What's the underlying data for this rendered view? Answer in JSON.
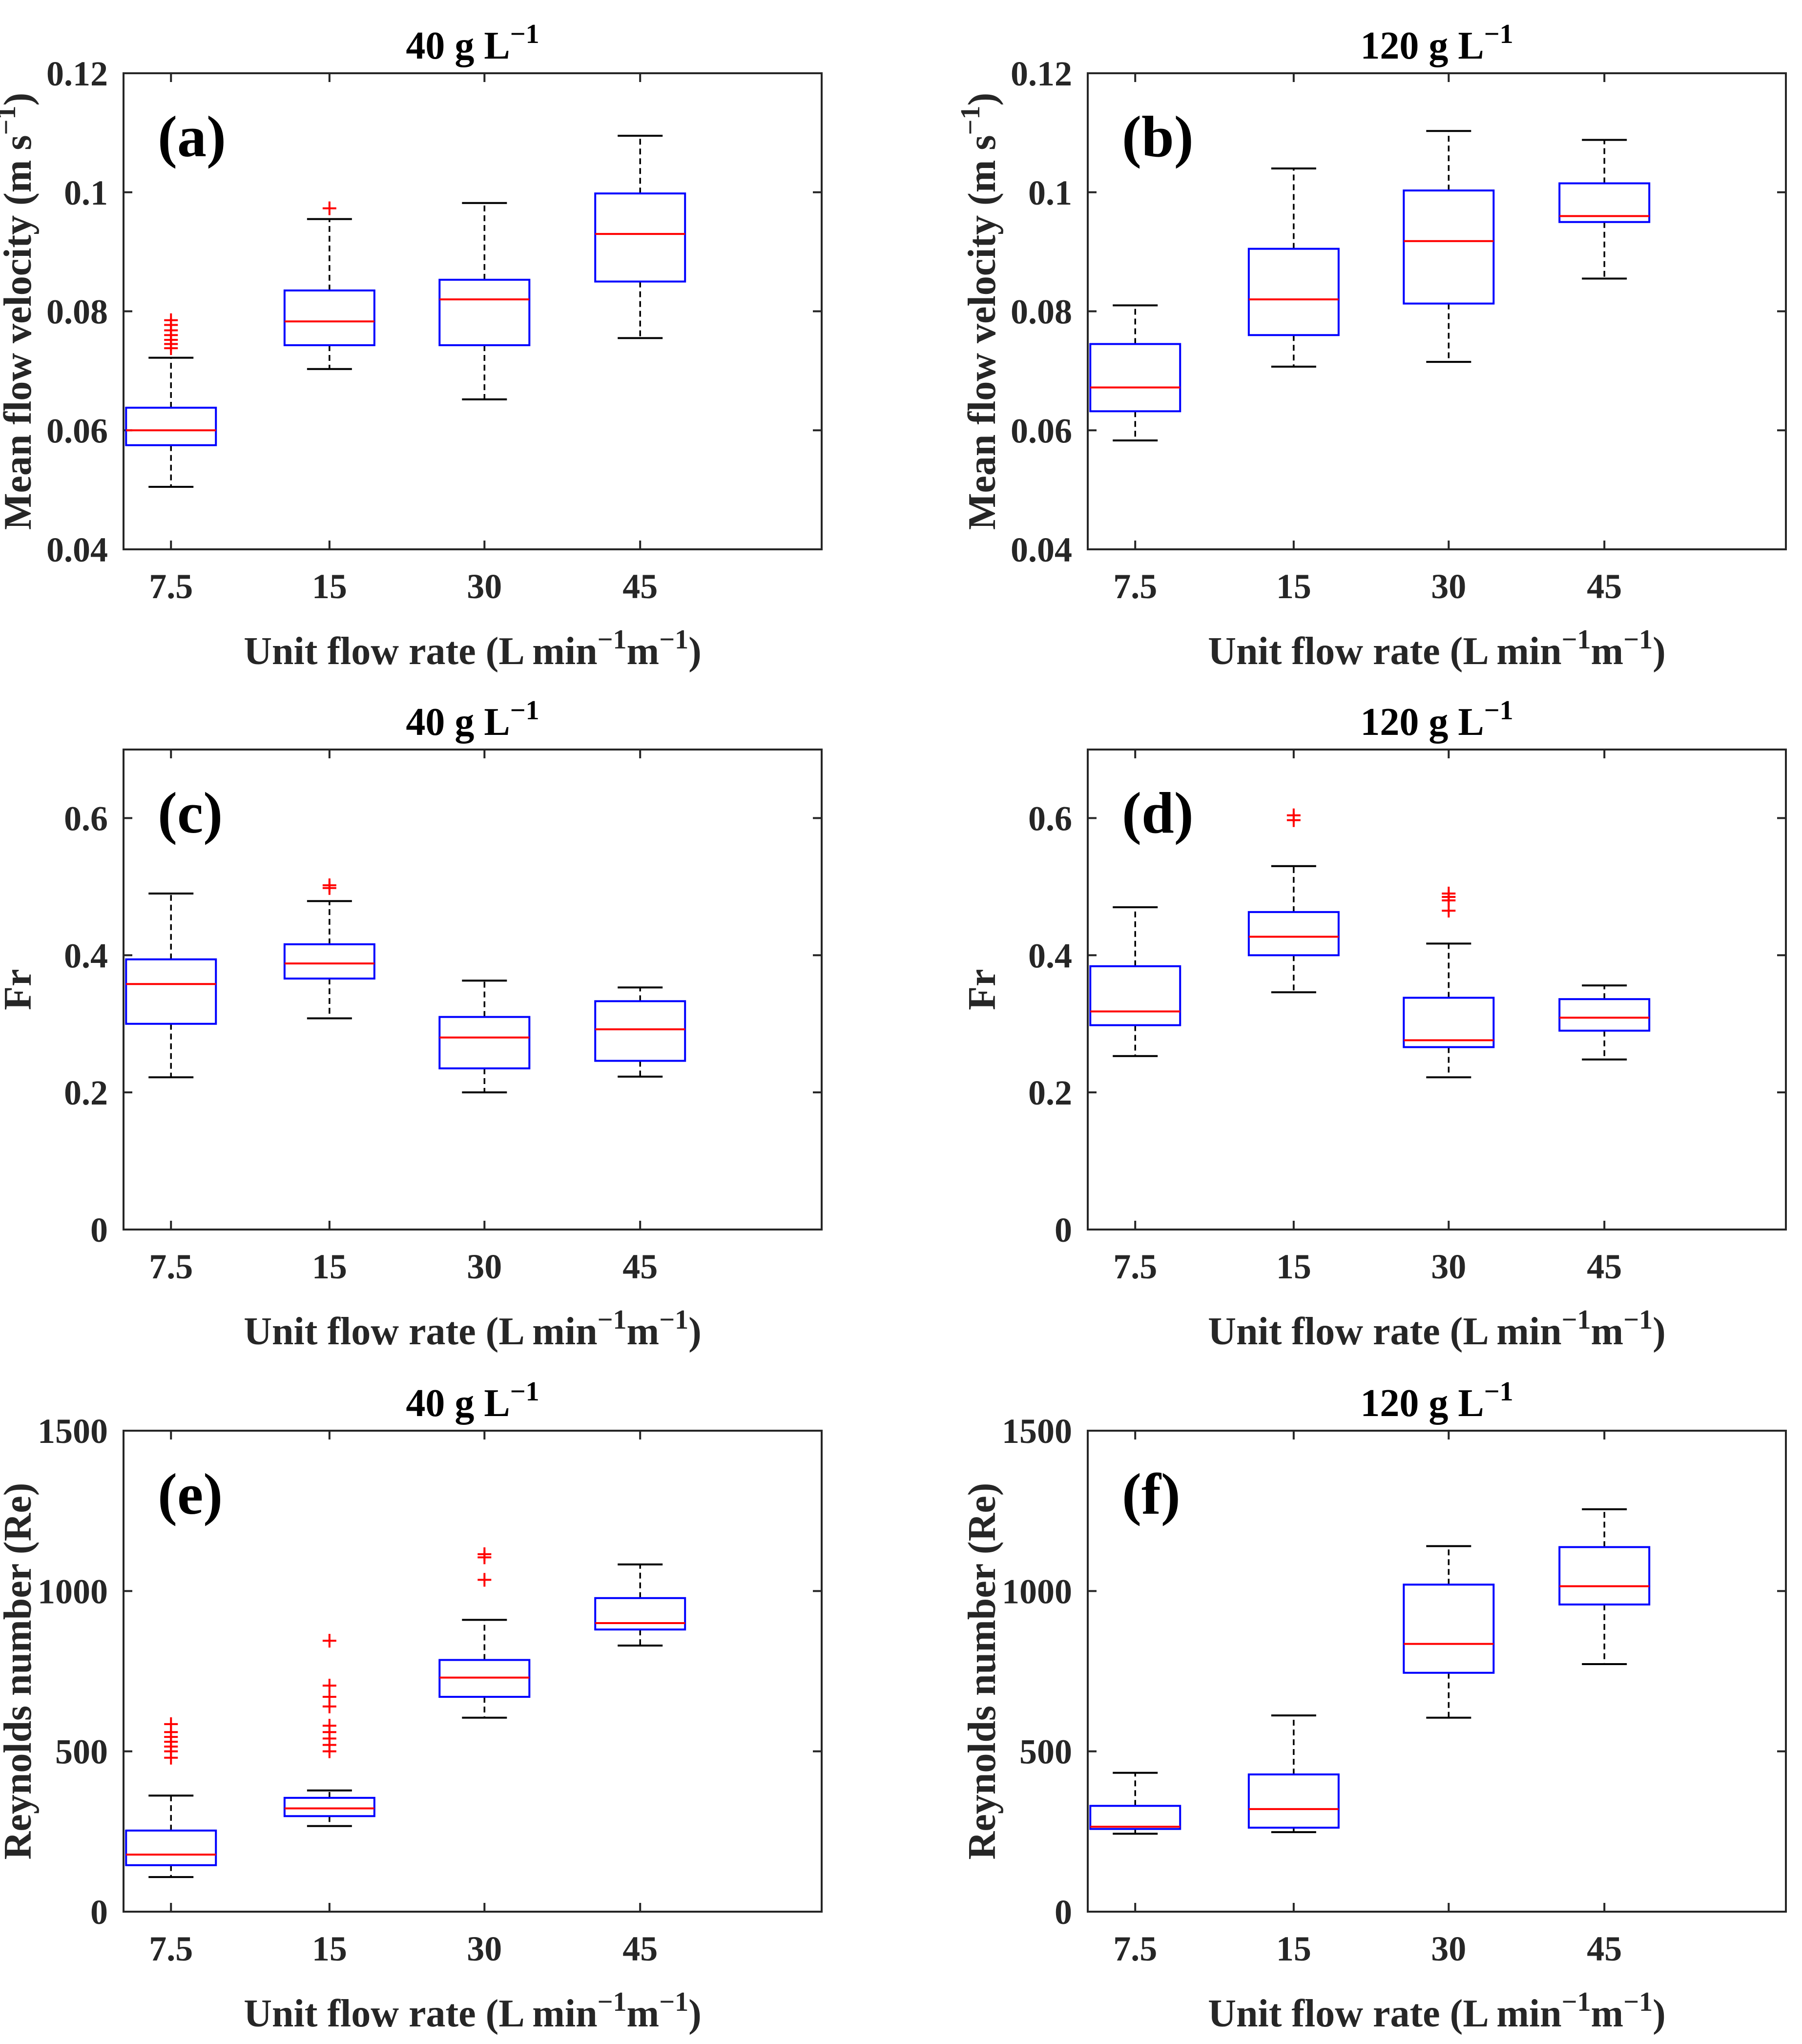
{
  "figure": {
    "categories": [
      "7.5",
      "15",
      "30",
      "45"
    ],
    "xlabel_main": "Unit flow rate (L min",
    "xlabel_sup1": "−1",
    "xlabel_mid": "m",
    "xlabel_sup2": "−1",
    "xlabel_end": ")",
    "colors": {
      "box": "#0000ff",
      "median": "#ff0000",
      "whisker": "#000000",
      "outlier": "#ff0000",
      "axes": "#262626"
    }
  },
  "chart_data": [
    {
      "type": "box",
      "panel": "(a)",
      "title_main": "40 g L",
      "title_sup": "−1",
      "ylabel_main": "Mean flow velocity (m s",
      "ylabel_sup": "−1",
      "ylabel_end": ")",
      "ylim": [
        0.04,
        0.12
      ],
      "yticks": [
        0.04,
        0.06,
        0.08,
        0.1,
        0.12
      ],
      "ytick_labels": [
        "0.04",
        "0.06",
        "0.08",
        "0.1",
        "0.12"
      ],
      "categories": [
        "7.5",
        "15",
        "30",
        "45"
      ],
      "boxes": [
        {
          "whisker_low": 0.0505,
          "q1": 0.0575,
          "median": 0.06,
          "q3": 0.0638,
          "whisker_high": 0.0722,
          "outliers": [
            0.0738,
            0.0745,
            0.0752,
            0.076,
            0.0768,
            0.0777,
            0.0785
          ]
        },
        {
          "whisker_low": 0.0703,
          "q1": 0.0743,
          "median": 0.0783,
          "q3": 0.0835,
          "whisker_high": 0.0955,
          "outliers": [
            0.0973
          ]
        },
        {
          "whisker_low": 0.0652,
          "q1": 0.0743,
          "median": 0.082,
          "q3": 0.0853,
          "whisker_high": 0.0982,
          "outliers": []
        },
        {
          "whisker_low": 0.0755,
          "q1": 0.085,
          "median": 0.093,
          "q3": 0.0998,
          "whisker_high": 0.1095,
          "outliers": []
        }
      ]
    },
    {
      "type": "box",
      "panel": "(b)",
      "title_main": "120 g L",
      "title_sup": "−1",
      "ylabel_main": "Mean flow velocity (m s",
      "ylabel_sup": "−1",
      "ylabel_end": ")",
      "ylim": [
        0.04,
        0.12
      ],
      "yticks": [
        0.04,
        0.06,
        0.08,
        0.1,
        0.12
      ],
      "ytick_labels": [
        "0.04",
        "0.06",
        "0.08",
        "0.1",
        "0.12"
      ],
      "categories": [
        "7.5",
        "15",
        "30",
        "45"
      ],
      "boxes": [
        {
          "whisker_low": 0.0583,
          "q1": 0.0632,
          "median": 0.0672,
          "q3": 0.0745,
          "whisker_high": 0.081,
          "outliers": []
        },
        {
          "whisker_low": 0.0707,
          "q1": 0.076,
          "median": 0.082,
          "q3": 0.0905,
          "whisker_high": 0.104,
          "outliers": []
        },
        {
          "whisker_low": 0.0715,
          "q1": 0.0813,
          "median": 0.0918,
          "q3": 0.1003,
          "whisker_high": 0.1103,
          "outliers": []
        },
        {
          "whisker_low": 0.0855,
          "q1": 0.095,
          "median": 0.096,
          "q3": 0.1015,
          "whisker_high": 0.1088,
          "outliers": []
        }
      ]
    },
    {
      "type": "box",
      "panel": "(c)",
      "title_main": "40 g L",
      "title_sup": "−1",
      "ylabel_main": "Fr",
      "ylabel_sup": "",
      "ylabel_end": "",
      "ylim": [
        0,
        0.7
      ],
      "yticks": [
        0,
        0.2,
        0.4,
        0.6
      ],
      "ytick_labels": [
        "0",
        "0.2",
        "0.4",
        "0.6"
      ],
      "categories": [
        "7.5",
        "15",
        "30",
        "45"
      ],
      "boxes": [
        {
          "whisker_low": 0.222,
          "q1": 0.3,
          "median": 0.358,
          "q3": 0.394,
          "whisker_high": 0.49,
          "outliers": []
        },
        {
          "whisker_low": 0.308,
          "q1": 0.366,
          "median": 0.388,
          "q3": 0.416,
          "whisker_high": 0.479,
          "outliers": [
            0.498,
            0.502
          ]
        },
        {
          "whisker_low": 0.2,
          "q1": 0.235,
          "median": 0.28,
          "q3": 0.31,
          "whisker_high": 0.363,
          "outliers": []
        },
        {
          "whisker_low": 0.223,
          "q1": 0.246,
          "median": 0.292,
          "q3": 0.333,
          "whisker_high": 0.353,
          "outliers": []
        }
      ]
    },
    {
      "type": "box",
      "panel": "(d)",
      "title_main": "120 g L",
      "title_sup": "−1",
      "ylabel_main": "Fr",
      "ylabel_sup": "",
      "ylabel_end": "",
      "ylim": [
        0,
        0.7
      ],
      "yticks": [
        0,
        0.2,
        0.4,
        0.6
      ],
      "ytick_labels": [
        "0",
        "0.2",
        "0.4",
        "0.6"
      ],
      "categories": [
        "7.5",
        "15",
        "30",
        "45"
      ],
      "boxes": [
        {
          "whisker_low": 0.253,
          "q1": 0.298,
          "median": 0.318,
          "q3": 0.384,
          "whisker_high": 0.47,
          "outliers": []
        },
        {
          "whisker_low": 0.346,
          "q1": 0.4,
          "median": 0.427,
          "q3": 0.463,
          "whisker_high": 0.53,
          "outliers": [
            0.597,
            0.604
          ]
        },
        {
          "whisker_low": 0.222,
          "q1": 0.266,
          "median": 0.276,
          "q3": 0.338,
          "whisker_high": 0.417,
          "outliers": [
            0.465,
            0.48,
            0.485,
            0.49
          ]
        },
        {
          "whisker_low": 0.248,
          "q1": 0.29,
          "median": 0.309,
          "q3": 0.336,
          "whisker_high": 0.356,
          "outliers": []
        }
      ]
    },
    {
      "type": "box",
      "panel": "(e)",
      "title_main": "40 g L",
      "title_sup": "−1",
      "ylabel_main": "Reynolds number (Re)",
      "ylabel_sup": "",
      "ylabel_end": "",
      "ylim": [
        0,
        1500
      ],
      "yticks": [
        0,
        500,
        1000,
        1500
      ],
      "ytick_labels": [
        "0",
        "500",
        "1000",
        "1500"
      ],
      "categories": [
        "7.5",
        "15",
        "30",
        "45"
      ],
      "boxes": [
        {
          "whisker_low": 108,
          "q1": 145,
          "median": 178,
          "q3": 253,
          "whisker_high": 362,
          "outliers": [
            480,
            500,
            515,
            530,
            545,
            560,
            585
          ]
        },
        {
          "whisker_low": 267,
          "q1": 298,
          "median": 322,
          "q3": 355,
          "whisker_high": 378,
          "outliers": [
            500,
            520,
            540,
            560,
            580,
            640,
            670,
            705,
            845
          ]
        },
        {
          "whisker_low": 605,
          "q1": 670,
          "median": 730,
          "q3": 785,
          "whisker_high": 910,
          "outliers": [
            1035,
            1105,
            1115
          ]
        },
        {
          "whisker_low": 830,
          "q1": 880,
          "median": 900,
          "q3": 978,
          "whisker_high": 1083,
          "outliers": []
        }
      ]
    },
    {
      "type": "box",
      "panel": "(f)",
      "title_main": "120 g L",
      "title_sup": "−1",
      "ylabel_main": "Reynolds number (Re)",
      "ylabel_sup": "",
      "ylabel_end": "",
      "ylim": [
        0,
        1500
      ],
      "yticks": [
        0,
        500,
        1000,
        1500
      ],
      "ytick_labels": [
        "0",
        "500",
        "1000",
        "1500"
      ],
      "categories": [
        "7.5",
        "15",
        "30",
        "45"
      ],
      "boxes": [
        {
          "whisker_low": 243,
          "q1": 258,
          "median": 265,
          "q3": 330,
          "whisker_high": 433,
          "outliers": []
        },
        {
          "whisker_low": 248,
          "q1": 262,
          "median": 320,
          "q3": 428,
          "whisker_high": 612,
          "outliers": []
        },
        {
          "whisker_low": 605,
          "q1": 745,
          "median": 835,
          "q3": 1020,
          "whisker_high": 1140,
          "outliers": []
        },
        {
          "whisker_low": 772,
          "q1": 958,
          "median": 1015,
          "q3": 1137,
          "whisker_high": 1255,
          "outliers": []
        }
      ]
    }
  ]
}
